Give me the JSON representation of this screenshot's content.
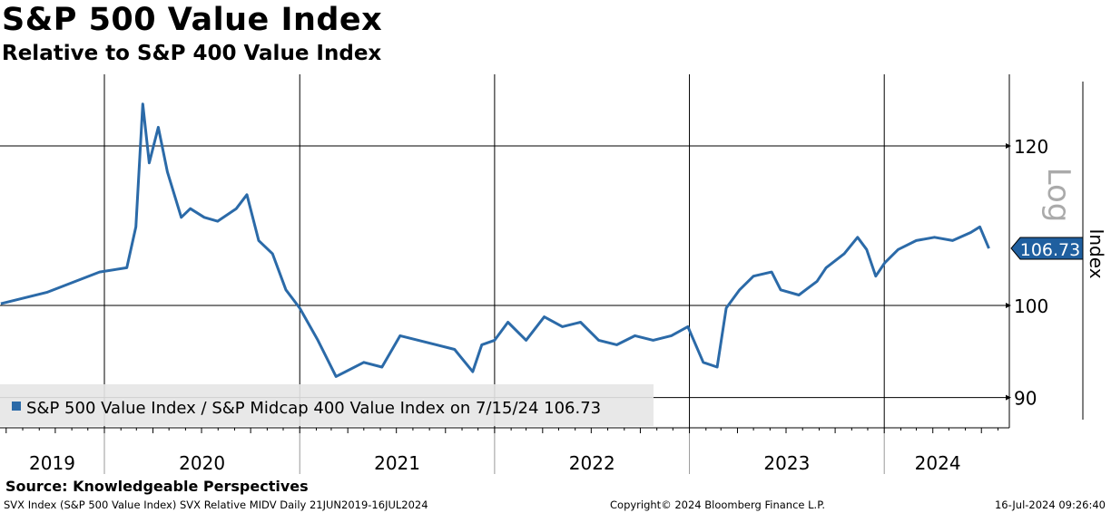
{
  "title": "S&P 500 Value Index",
  "subtitle": "Relative to S&P 400 Value Index",
  "source": "Source: Knowledgeable Perspectives",
  "footer": {
    "left": "SVX Index (S&P 500 Value Index) SVX Relative MIDV  Daily 21JUN2019-16JUL2024",
    "center": "Copyright© 2024 Bloomberg Finance L.P.",
    "right": "16-Jul-2024 09:26:40"
  },
  "colors": {
    "series": "#2b6aa8",
    "label_bg": "#1f5f9f"
  },
  "chart_data": {
    "type": "line",
    "title": "S&P 500 Value Index",
    "subtitle": "Relative to S&P 400 Value Index",
    "ylabel": "Index",
    "yscale": "log",
    "yscale_label": "Log",
    "ylim": [
      87.5,
      130
    ],
    "yticks": [
      90,
      100,
      120
    ],
    "xlim": [
      "2019-06-21",
      "2024-08-01"
    ],
    "xticks": [
      "2019",
      "2020",
      "2021",
      "2022",
      "2023",
      "2024"
    ],
    "grid": true,
    "legend": {
      "position": "bottom-left",
      "text": "S&P 500 Value Index / S&P Midcap 400 Value Index on 7/15/24 106.73"
    },
    "last_value_label": "106.73",
    "series": [
      {
        "name": "S&P 500 Value Index / S&P Midcap 400 Value Index",
        "points": [
          [
            "2019-06-21",
            100.2
          ],
          [
            "2019-09-15",
            101.5
          ],
          [
            "2019-12-23",
            103.9
          ],
          [
            "2020-02-12",
            104.4
          ],
          [
            "2020-02-29",
            109.4
          ],
          [
            "2020-03-13",
            125.9
          ],
          [
            "2020-03-25",
            117.7
          ],
          [
            "2020-04-11",
            122.6
          ],
          [
            "2020-04-28",
            116.5
          ],
          [
            "2020-05-24",
            110.6
          ],
          [
            "2020-06-10",
            111.7
          ],
          [
            "2020-07-06",
            110.6
          ],
          [
            "2020-07-31",
            110.1
          ],
          [
            "2020-09-04",
            111.7
          ],
          [
            "2020-09-24",
            113.5
          ],
          [
            "2020-10-16",
            107.7
          ],
          [
            "2020-11-11",
            106.1
          ],
          [
            "2020-12-06",
            101.8
          ],
          [
            "2021-01-01",
            99.7
          ],
          [
            "2021-02-04",
            96.1
          ],
          [
            "2021-03-10",
            92.2
          ],
          [
            "2021-05-01",
            93.7
          ],
          [
            "2021-06-04",
            93.2
          ],
          [
            "2021-07-08",
            96.6
          ],
          [
            "2021-08-11",
            96.1
          ],
          [
            "2021-09-14",
            95.6
          ],
          [
            "2021-10-18",
            95.1
          ],
          [
            "2021-11-21",
            92.7
          ],
          [
            "2021-12-08",
            95.6
          ],
          [
            "2022-01-01",
            96.1
          ],
          [
            "2022-01-26",
            98.1
          ],
          [
            "2022-03-01",
            96.1
          ],
          [
            "2022-04-04",
            98.7
          ],
          [
            "2022-05-08",
            97.6
          ],
          [
            "2022-06-11",
            98.1
          ],
          [
            "2022-07-15",
            96.1
          ],
          [
            "2022-08-18",
            95.6
          ],
          [
            "2022-09-21",
            96.6
          ],
          [
            "2022-10-25",
            96.1
          ],
          [
            "2022-11-28",
            96.6
          ],
          [
            "2022-12-29",
            97.6
          ],
          [
            "2023-01-27",
            93.7
          ],
          [
            "2023-02-22",
            93.2
          ],
          [
            "2023-03-11",
            99.7
          ],
          [
            "2023-04-05",
            101.8
          ],
          [
            "2023-05-01",
            103.4
          ],
          [
            "2023-06-04",
            103.9
          ],
          [
            "2023-06-21",
            101.8
          ],
          [
            "2023-07-25",
            101.2
          ],
          [
            "2023-08-28",
            102.8
          ],
          [
            "2023-09-14",
            104.4
          ],
          [
            "2023-10-18",
            106.1
          ],
          [
            "2023-11-12",
            108.1
          ],
          [
            "2023-11-29",
            106.6
          ],
          [
            "2023-12-16",
            103.4
          ],
          [
            "2024-01-02",
            105.0
          ],
          [
            "2024-01-27",
            106.6
          ],
          [
            "2024-03-01",
            107.7
          ],
          [
            "2024-04-04",
            108.1
          ],
          [
            "2024-05-08",
            107.7
          ],
          [
            "2024-06-11",
            108.7
          ],
          [
            "2024-06-28",
            109.4
          ],
          [
            "2024-07-15",
            106.73
          ]
        ]
      }
    ]
  }
}
